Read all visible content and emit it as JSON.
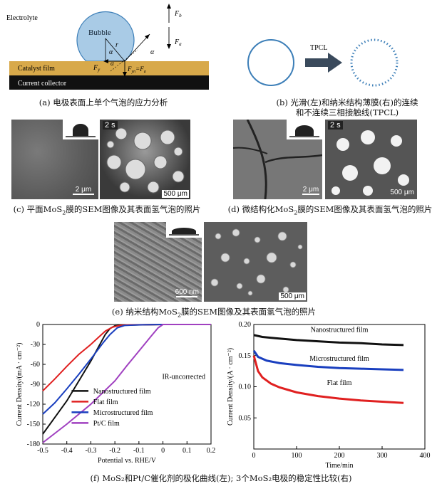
{
  "panel_a": {
    "electrolyte": "Electrolyte",
    "bubble": "Bubble",
    "catalyst_film": "Catalyst film",
    "current_collector": "Current collector",
    "sym_r": "r",
    "sym_alpha": "α",
    "sym_Fb": "F",
    "sym_Fb_sub": "b",
    "sym_Fa": "F",
    "sym_Fa_sub": "a",
    "sym_Fy": "F",
    "sym_Fy_sub": "y",
    "sym_Fyn": "F",
    "sym_Fyn_sub": "yn",
    "sym_eq": "=F",
    "sym_eq_sub": "a",
    "caption": "(a) 电极表面上单个气泡的应力分析",
    "colors": {
      "film": "#d8a94a",
      "collector": "#111111",
      "bubble": "#a9cbe6",
      "bubble_stroke": "#3d7fb8"
    }
  },
  "panel_b": {
    "tpcl": "TPCL",
    "caption_line1": "(b) 光滑(左)和纳米结构薄膜(右)的连续",
    "caption_line2": "和不连续三相接触线(TPCL)",
    "colors": {
      "ring": "#3d7fb8",
      "arrow": "#3a4a5c"
    }
  },
  "panel_c": {
    "scale_sem": "2 μm",
    "time": "2 s",
    "scale_photo": "500 μm",
    "caption_pre": "(c) 平面MoS",
    "caption_sub": "2",
    "caption_post": "膜的SEM图像及其表面氢气泡的照片"
  },
  "panel_d": {
    "scale_sem": "2 μm",
    "time": "2 s",
    "scale_photo": "500 μm",
    "caption_pre": "(d) 微结构化MoS",
    "caption_sub": "2",
    "caption_post": "膜的SEM图像及其表面氢气泡的照片"
  },
  "panel_e": {
    "scale_sem": "600 nm",
    "scale_photo": "500 μm",
    "caption_pre": "(e) 纳米结构MoS",
    "caption_sub": "2",
    "caption_post": "膜的SEM图像及其表面氢气泡的照片"
  },
  "panel_f": {
    "caption": "(f) MoS₂和Pt/C催化剂的极化曲线(左); 3个MoS₂电极的稳定性比较(右)"
  },
  "chart_data": [
    {
      "type": "line",
      "xlabel": "Potential vs. RHE/V",
      "ylabel": "Current Density/(mA · cm⁻²)",
      "xlim": [
        -0.5,
        0.2
      ],
      "ylim": [
        -180,
        0
      ],
      "xticks": [
        "-0.5",
        "-0.4",
        "-0.3",
        "-0.2",
        "-0.1",
        "0",
        "0.1",
        "0.2"
      ],
      "yticks": [
        "0",
        "-30",
        "-60",
        "-90",
        "-120",
        "-150",
        "-180"
      ],
      "annotation": "IR-uncorrected",
      "series": [
        {
          "name": "Nanostructured film",
          "color": "#111111",
          "x": [
            -0.5,
            -0.45,
            -0.4,
            -0.35,
            -0.3,
            -0.27,
            -0.24,
            -0.22,
            -0.2,
            -0.15,
            0,
            0.2
          ],
          "y": [
            -165,
            -140,
            -115,
            -85,
            -55,
            -35,
            -15,
            -6,
            -2,
            -1,
            0,
            0
          ]
        },
        {
          "name": "Flat film",
          "color": "#e02020",
          "x": [
            -0.5,
            -0.45,
            -0.4,
            -0.35,
            -0.3,
            -0.27,
            -0.24,
            -0.21,
            -0.18,
            -0.15,
            0,
            0.2
          ],
          "y": [
            -100,
            -82,
            -63,
            -45,
            -30,
            -20,
            -10,
            -4,
            -1.5,
            -0.5,
            0,
            0
          ]
        },
        {
          "name": "Microstructured film",
          "color": "#1a3fbf",
          "x": [
            -0.5,
            -0.45,
            -0.4,
            -0.35,
            -0.3,
            -0.25,
            -0.22,
            -0.19,
            -0.16,
            -0.1,
            0,
            0.2
          ],
          "y": [
            -135,
            -118,
            -97,
            -75,
            -52,
            -28,
            -15,
            -5,
            -1.5,
            -0.5,
            0,
            0
          ]
        },
        {
          "name": "Pt/C film",
          "color": "#a040c0",
          "x": [
            -0.5,
            -0.4,
            -0.3,
            -0.2,
            -0.15,
            -0.1,
            -0.05,
            -0.02,
            0,
            0.2
          ],
          "y": [
            -178,
            -150,
            -120,
            -85,
            -62,
            -40,
            -18,
            -5,
            0,
            0
          ]
        }
      ]
    },
    {
      "type": "line",
      "xlabel": "Time/min",
      "ylabel": "Current Density/(A · cm⁻²)",
      "xlim": [
        0,
        400
      ],
      "ylim": [
        0.0,
        0.2
      ],
      "xticks": [
        "0",
        "100",
        "200",
        "300",
        "400"
      ],
      "yticks": [
        "0.20",
        "0.15",
        "0.10",
        "0.05"
      ],
      "series": [
        {
          "name": "Nanostructured film",
          "color": "#111111",
          "x": [
            0,
            20,
            50,
            100,
            150,
            200,
            250,
            300,
            350
          ],
          "y": [
            0.183,
            0.18,
            0.178,
            0.175,
            0.173,
            0.171,
            0.17,
            0.168,
            0.167
          ]
        },
        {
          "name": "Microstructured film",
          "color": "#1a3fbf",
          "x": [
            0,
            10,
            30,
            60,
            100,
            150,
            200,
            250,
            300,
            350
          ],
          "y": [
            0.158,
            0.148,
            0.142,
            0.138,
            0.135,
            0.132,
            0.13,
            0.129,
            0.128,
            0.127
          ]
        },
        {
          "name": "Flat film",
          "color": "#e02020",
          "x": [
            0,
            10,
            20,
            40,
            60,
            80,
            100,
            150,
            200,
            250,
            300,
            350
          ],
          "y": [
            0.15,
            0.125,
            0.115,
            0.105,
            0.099,
            0.095,
            0.091,
            0.085,
            0.081,
            0.078,
            0.076,
            0.074
          ]
        }
      ]
    }
  ]
}
